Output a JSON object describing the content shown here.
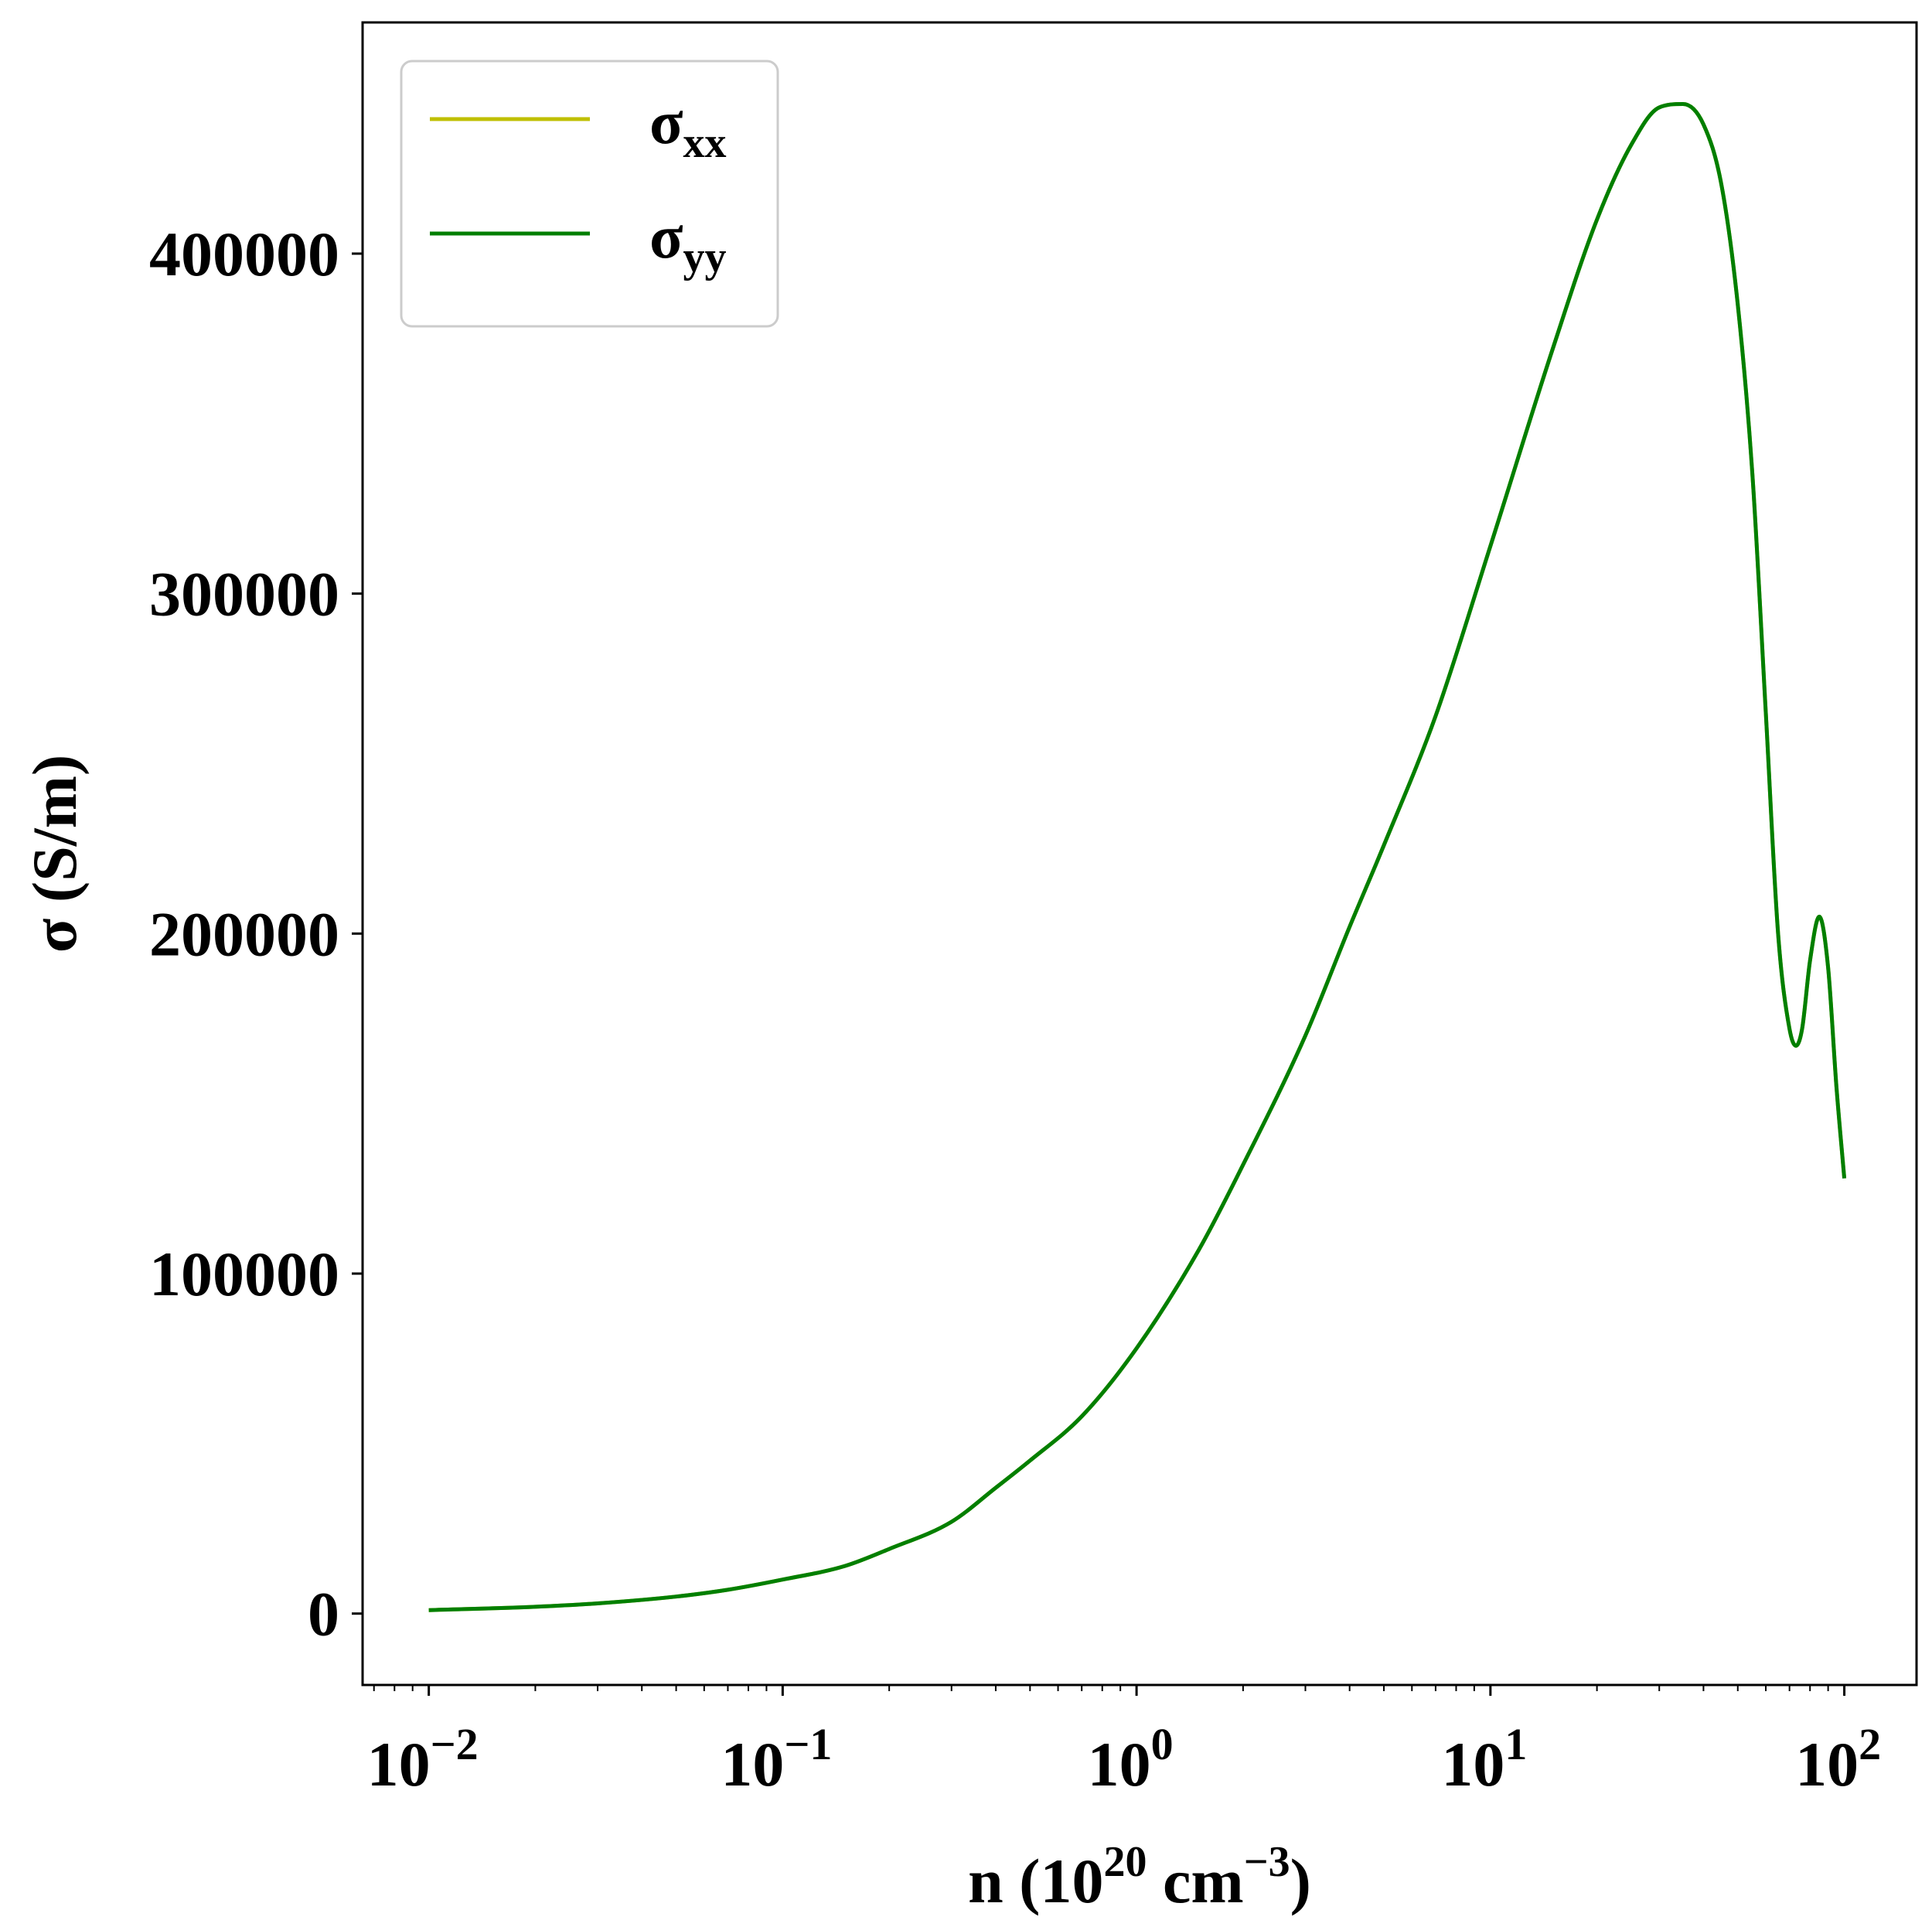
{
  "chart_data": {
    "type": "line",
    "title": "",
    "xlabel": {
      "main": "n (10",
      "exp1": "20",
      "mid": " cm",
      "exp2": "−3",
      "end": ")"
    },
    "ylabel": "σ (S/m)",
    "xscale": "log",
    "xlim": [
      0.0065,
      160
    ],
    "ylim": [
      -21000,
      468000
    ],
    "x_ticks": [
      {
        "value": 0.01,
        "base": "10",
        "exp": "−2"
      },
      {
        "value": 0.1,
        "base": "10",
        "exp": "−1"
      },
      {
        "value": 1,
        "base": "10",
        "exp": "0"
      },
      {
        "value": 10,
        "base": "10",
        "exp": "1"
      },
      {
        "value": 100,
        "base": "10",
        "exp": "2"
      }
    ],
    "y_ticks": [
      {
        "value": 0,
        "label": "0"
      },
      {
        "value": 100000,
        "label": "100000"
      },
      {
        "value": 200000,
        "label": "200000"
      },
      {
        "value": 300000,
        "label": "300000"
      },
      {
        "value": 400000,
        "label": "400000"
      }
    ],
    "grid": false,
    "legend": "top-left",
    "series": [
      {
        "name": "σxx",
        "symbol": "σ",
        "sub": "xx",
        "color": "#bfbf00",
        "x": [
          0.01,
          0.02,
          0.03,
          0.05,
          0.07,
          0.1,
          0.15,
          0.2,
          0.3,
          0.4,
          0.5,
          0.7,
          1.0,
          1.5,
          2.0,
          3.0,
          4.0,
          5.0,
          7.0,
          10.0,
          15.0,
          20.0,
          25.0,
          30.0,
          35.0,
          40.0,
          45.0,
          50.0,
          55.0,
          60.0,
          65.0,
          70.0,
          73.0,
          76.0,
          80.0,
          85.0,
          90.0,
          95.0,
          100.0
        ],
        "y": [
          1000,
          2000,
          3000,
          5000,
          7000,
          10000,
          14000,
          19000,
          27000,
          37000,
          45000,
          58000,
          78000,
          107000,
          132000,
          170000,
          202000,
          226000,
          264000,
          314000,
          372000,
          410000,
          432000,
          443000,
          444000,
          438000,
          420000,
          385000,
          335000,
          265000,
          200000,
          172000,
          167000,
          172000,
          192000,
          205000,
          190000,
          155000,
          128000
        ]
      },
      {
        "name": "σyy",
        "symbol": "σ",
        "sub": "yy",
        "color": "#007f00",
        "x": [
          0.01,
          0.02,
          0.03,
          0.05,
          0.07,
          0.1,
          0.15,
          0.2,
          0.3,
          0.4,
          0.5,
          0.7,
          1.0,
          1.5,
          2.0,
          3.0,
          4.0,
          5.0,
          7.0,
          10.0,
          15.0,
          20.0,
          25.0,
          30.0,
          35.0,
          40.0,
          45.0,
          50.0,
          55.0,
          60.0,
          65.0,
          70.0,
          73.0,
          76.0,
          80.0,
          85.0,
          90.0,
          95.0,
          100.0
        ],
        "y": [
          1000,
          2000,
          3000,
          5000,
          7000,
          10000,
          14000,
          19000,
          27000,
          37000,
          45000,
          58000,
          78000,
          107000,
          132000,
          170000,
          202000,
          226000,
          264000,
          314000,
          372000,
          410000,
          432000,
          443000,
          444000,
          438000,
          420000,
          385000,
          335000,
          265000,
          200000,
          172000,
          167000,
          172000,
          192000,
          205000,
          190000,
          155000,
          128000
        ]
      }
    ]
  }
}
